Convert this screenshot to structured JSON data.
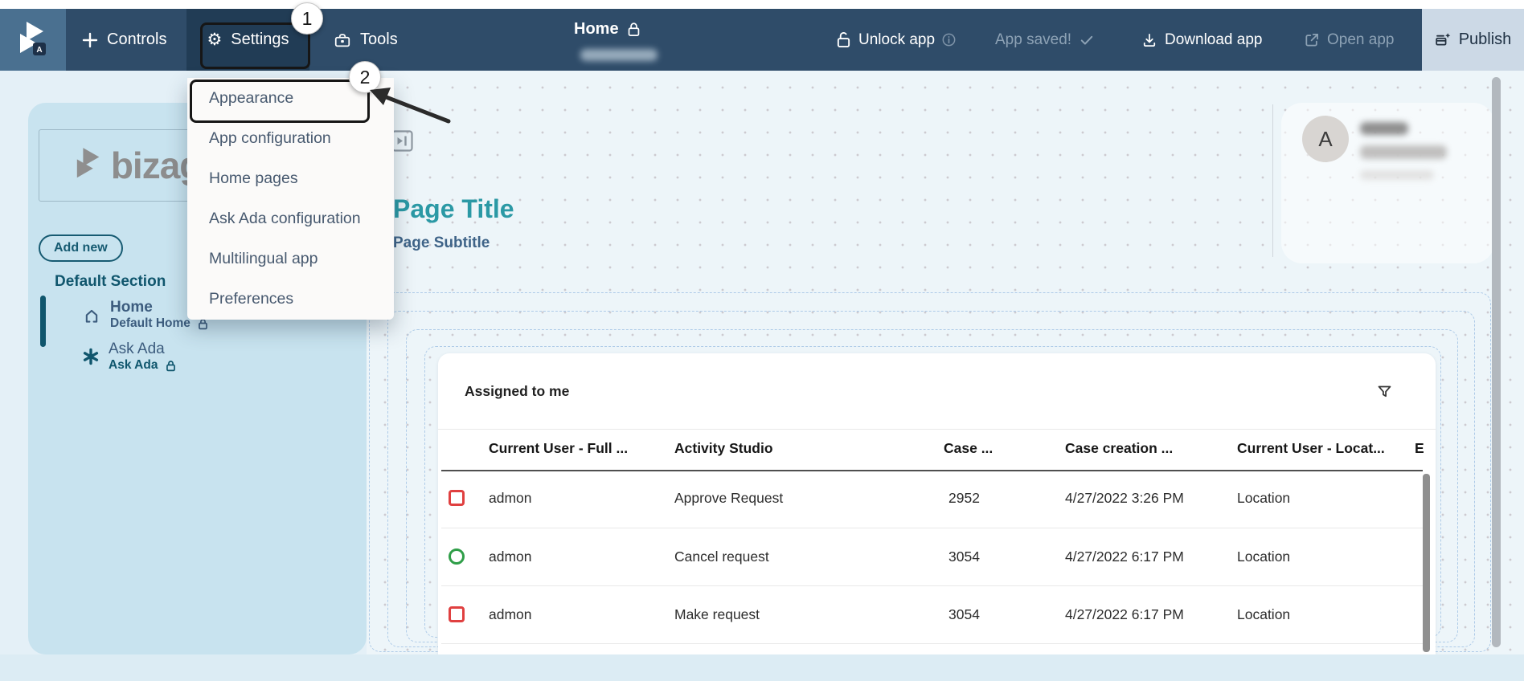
{
  "colors": {
    "nav_bg": "#2F4C69",
    "logo_tile": "#4A7090",
    "settings_tile": "#213C55",
    "publish_tile": "#CCD9E6",
    "sidebar_bg": "#C8E3EF",
    "canvas_bg": "#EDF5F9",
    "accent_teal": "#2B99A5",
    "sidebar_teal": "#10566D",
    "muted_nav": "#8DA2B5",
    "status_red": "#E04040",
    "status_green": "#2F9E48",
    "dashed_border": "#AECBE8"
  },
  "topbar": {
    "menu": {
      "controls": "Controls",
      "settings": "Settings",
      "tools": "Tools"
    },
    "page_switcher": {
      "title": "Home"
    },
    "actions": {
      "unlock": "Unlock app",
      "saved": "App saved!",
      "download": "Download app",
      "open": "Open app",
      "publish": "Publish"
    }
  },
  "annotations": {
    "step1": "1",
    "step2": "2"
  },
  "settings_menu": {
    "items": [
      "Appearance",
      "App configuration",
      "Home pages",
      "Ask Ada configuration",
      "Multilingual app",
      "Preferences"
    ]
  },
  "sidebar": {
    "logo_text": "bizagi",
    "add_new": "Add new",
    "section": "Default Section",
    "items": [
      {
        "title": "Home",
        "subtitle": "Default Home",
        "icon": "home",
        "locked": true,
        "selected": true
      },
      {
        "title": "Ask Ada",
        "subtitle": "Ask Ada",
        "icon": "spark",
        "locked": true,
        "selected": false
      }
    ]
  },
  "canvas": {
    "page_title": "Page Title",
    "page_subtitle": "Page Subtitle",
    "avatar_letter": "A"
  },
  "table": {
    "title": "Assigned to me",
    "columns": [
      "Current User - Full ...",
      "Activity Studio",
      "Case ...",
      "Case creation ...",
      "Current User - Locat...",
      "E"
    ],
    "rows": [
      {
        "status": "red-square",
        "cells": [
          "admon",
          "Approve Request",
          "2952",
          "4/27/2022 3:26 PM",
          "Location"
        ]
      },
      {
        "status": "green-circle",
        "cells": [
          "admon",
          "Cancel request",
          "3054",
          "4/27/2022 6:17 PM",
          "Location"
        ]
      },
      {
        "status": "red-square",
        "cells": [
          "admon",
          "Make request",
          "3054",
          "4/27/2022 6:17 PM",
          "Location"
        ]
      }
    ]
  }
}
